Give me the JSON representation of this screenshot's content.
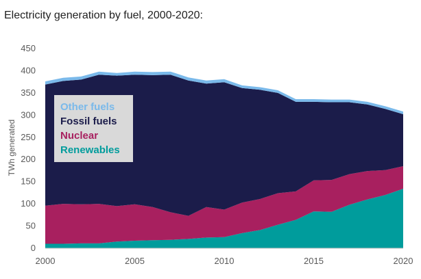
{
  "chart_data": {
    "type": "area",
    "stacked": true,
    "title": "Electricity generation by fuel, 2000-2020:",
    "xlabel": "",
    "ylabel": "TWh generated",
    "ylim": [
      0,
      450
    ],
    "yticks": [
      0,
      50,
      100,
      150,
      200,
      250,
      300,
      350,
      400,
      450
    ],
    "xticks": [
      2000,
      2005,
      2010,
      2015,
      2020
    ],
    "x": [
      2000,
      2001,
      2002,
      2003,
      2004,
      2005,
      2006,
      2007,
      2008,
      2009,
      2010,
      2011,
      2012,
      2013,
      2014,
      2015,
      2016,
      2017,
      2018,
      2019,
      2020
    ],
    "grid": false,
    "legend_position": "upper-left",
    "series": [
      {
        "name": "Renewables",
        "color": "#009c9c",
        "values": [
          10,
          10,
          11,
          11,
          15,
          17,
          18,
          19,
          21,
          24,
          25,
          34,
          41,
          53,
          64,
          83,
          82,
          98,
          110,
          120,
          134
        ]
      },
      {
        "name": "Nuclear",
        "color": "#a8205f",
        "values": [
          86,
          90,
          88,
          89,
          80,
          82,
          75,
          62,
          52,
          69,
          62,
          69,
          70,
          71,
          64,
          70,
          72,
          69,
          64,
          56,
          51
        ]
      },
      {
        "name": "Fossil fuels",
        "color": "#1b1c4a",
        "values": [
          273,
          277,
          281,
          291,
          294,
          292,
          297,
          310,
          305,
          278,
          287,
          258,
          246,
          226,
          202,
          177,
          175,
          162,
          150,
          138,
          117
        ]
      },
      {
        "name": "Other fuels",
        "color": "#7ab9ea",
        "values": [
          7,
          7,
          7,
          7,
          6,
          7,
          7,
          7,
          7,
          7,
          7,
          6,
          6,
          6,
          6,
          6,
          6,
          6,
          6,
          6,
          6
        ]
      }
    ]
  }
}
